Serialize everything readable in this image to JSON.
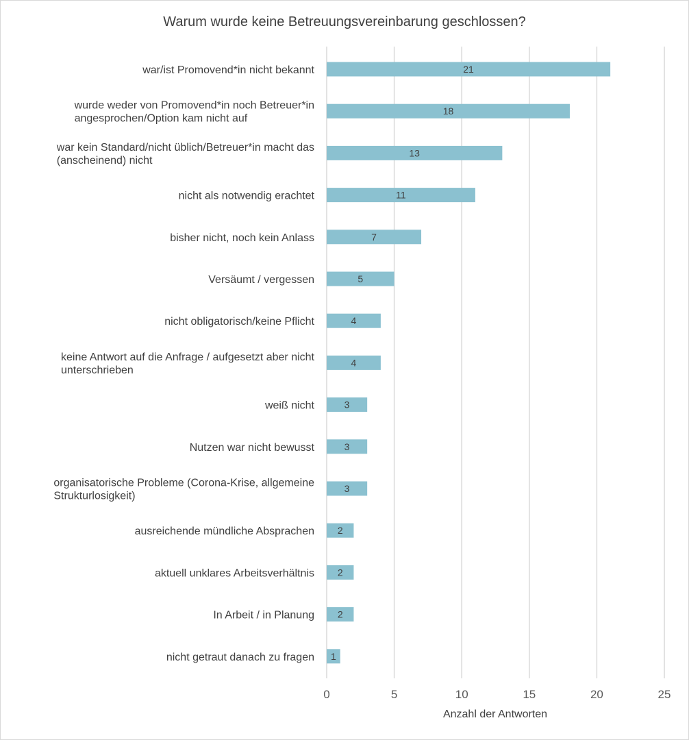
{
  "chart_data": {
    "type": "bar",
    "orientation": "horizontal",
    "title": "Warum wurde keine Betreuungsvereinbarung geschlossen?",
    "xlabel": "Anzahl der Antworten",
    "ylabel": "",
    "xlim": [
      0,
      25
    ],
    "xticks": [
      0,
      5,
      10,
      15,
      20,
      25
    ],
    "grid": true,
    "bar_color": "#8bc1d0",
    "categories": [
      [
        "war/ist  Promovend*in nicht bekannt"
      ],
      [
        "wurde weder von Promovend*in noch Betreuer*in",
        "angesprochen/Option kam nicht auf"
      ],
      [
        "war kein Standard/nicht üblich/Betreuer*in macht das",
        "(anscheinend) nicht"
      ],
      [
        "nicht als notwendig erachtet"
      ],
      [
        "bisher nicht, noch kein Anlass"
      ],
      [
        "Versäumt / vergessen"
      ],
      [
        "nicht obligatorisch/keine Pflicht"
      ],
      [
        "keine Antwort auf die Anfrage / aufgesetzt aber nicht",
        "unterschrieben"
      ],
      [
        "weiß nicht"
      ],
      [
        "Nutzen war nicht bewusst"
      ],
      [
        "organisatorische Probleme (Corona-Krise, allgemeine",
        "Strukturlosigkeit)"
      ],
      [
        "ausreichende mündliche Absprachen"
      ],
      [
        "aktuell unklares Arbeitsverhältnis"
      ],
      [
        "In Arbeit / in Planung"
      ],
      [
        "nicht getraut danach zu fragen"
      ]
    ],
    "values": [
      21,
      18,
      13,
      11,
      7,
      5,
      4,
      4,
      3,
      3,
      3,
      2,
      2,
      2,
      1
    ]
  }
}
